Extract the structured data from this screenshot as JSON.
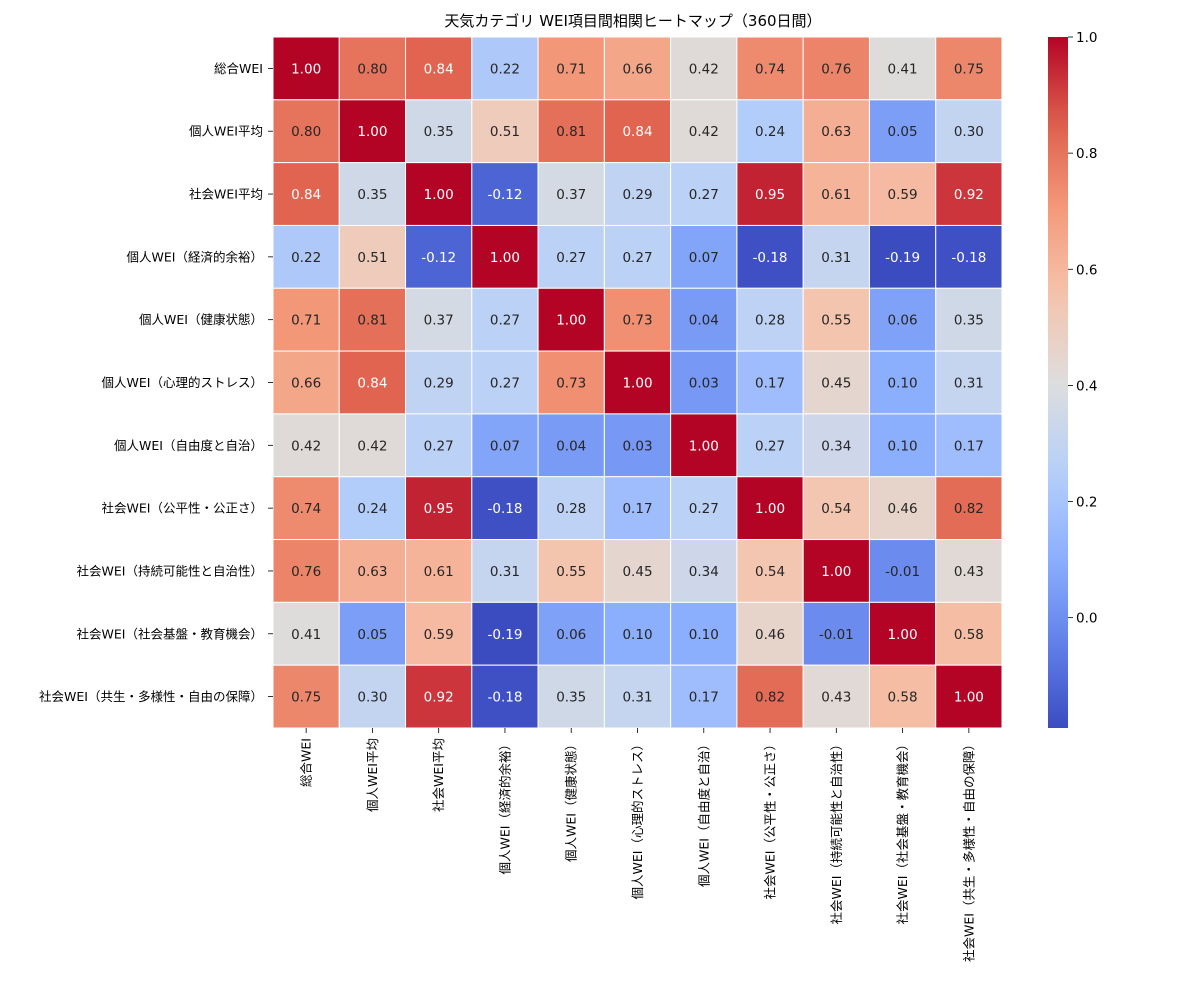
{
  "chart_data": {
    "type": "heatmap",
    "title": "天気カテゴリ WEI項目間相関ヒートマップ（360日間）",
    "xlabel": "",
    "ylabel": "",
    "labels": [
      "総合WEI",
      "個人WEI平均",
      "社会WEI平均",
      "個人WEI（経済的余裕）",
      "個人WEI（健康状態）",
      "個人WEI（心理的ストレス）",
      "個人WEI（自由度と自治）",
      "社会WEI（公平性・公正さ）",
      "社会WEI（持続可能性と自治性）",
      "社会WEI（社会基盤・教育機会）",
      "社会WEI（共生・多様性・自由の保障）"
    ],
    "values": [
      [
        1.0,
        0.8,
        0.84,
        0.22,
        0.71,
        0.66,
        0.42,
        0.74,
        0.76,
        0.41,
        0.75
      ],
      [
        0.8,
        1.0,
        0.35,
        0.51,
        0.81,
        0.84,
        0.42,
        0.24,
        0.63,
        0.05,
        0.3
      ],
      [
        0.84,
        0.35,
        1.0,
        -0.12,
        0.37,
        0.29,
        0.27,
        0.95,
        0.61,
        0.59,
        0.92
      ],
      [
        0.22,
        0.51,
        -0.12,
        1.0,
        0.27,
        0.27,
        0.07,
        -0.18,
        0.31,
        -0.19,
        -0.18
      ],
      [
        0.71,
        0.81,
        0.37,
        0.27,
        1.0,
        0.73,
        0.04,
        0.28,
        0.55,
        0.06,
        0.35
      ],
      [
        0.66,
        0.84,
        0.29,
        0.27,
        0.73,
        1.0,
        0.03,
        0.17,
        0.45,
        0.1,
        0.31
      ],
      [
        0.42,
        0.42,
        0.27,
        0.07,
        0.04,
        0.03,
        1.0,
        0.27,
        0.34,
        0.1,
        0.17
      ],
      [
        0.74,
        0.24,
        0.95,
        -0.18,
        0.28,
        0.17,
        0.27,
        1.0,
        0.54,
        0.46,
        0.82
      ],
      [
        0.76,
        0.63,
        0.61,
        0.31,
        0.55,
        0.45,
        0.34,
        0.54,
        1.0,
        -0.01,
        0.43
      ],
      [
        0.41,
        0.05,
        0.59,
        -0.19,
        0.06,
        0.1,
        0.1,
        0.46,
        -0.01,
        1.0,
        0.58
      ],
      [
        0.75,
        0.3,
        0.92,
        -0.18,
        0.35,
        0.31,
        0.17,
        0.82,
        0.43,
        0.58,
        1.0
      ]
    ],
    "colormap": "coolwarm",
    "vmin": -0.19,
    "vmax": 1.0,
    "colorbar_ticks": [
      "0.0",
      "0.2",
      "0.4",
      "0.6",
      "0.8",
      "1.0"
    ],
    "grid": true,
    "legend": "colorbar-right"
  }
}
